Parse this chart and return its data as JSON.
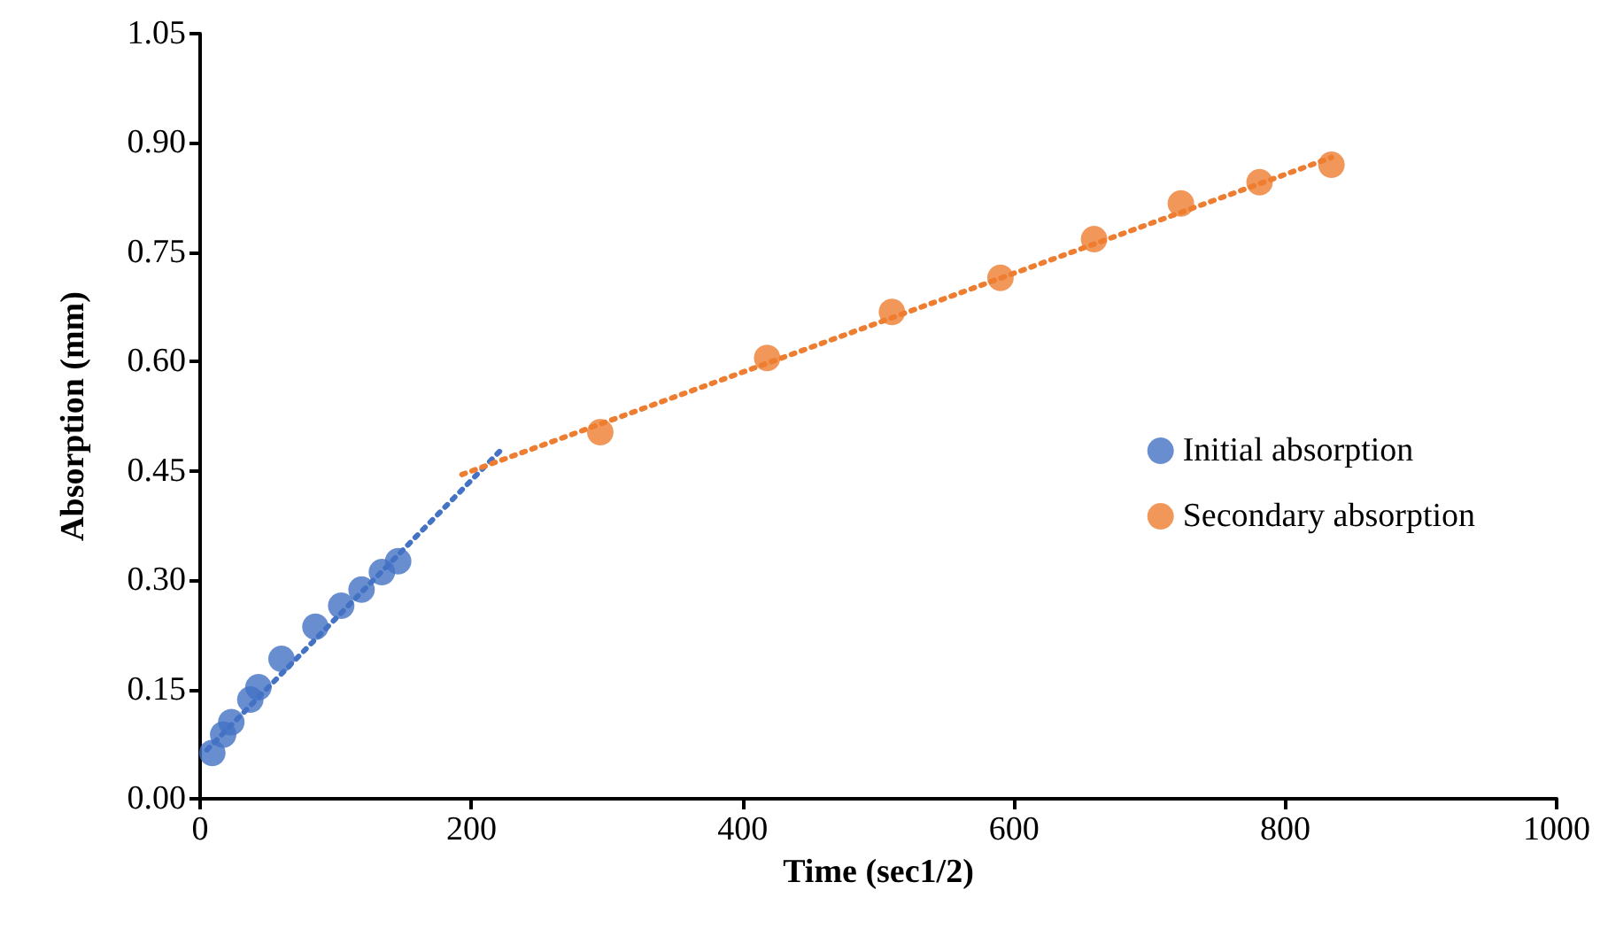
{
  "chart_data": {
    "type": "scatter",
    "xlabel": "Time (sec1/2)",
    "ylabel": "Absorption (mm)",
    "xlim": [
      0,
      1000
    ],
    "xticks": [
      0,
      200,
      400,
      600,
      800,
      1000
    ],
    "ylim": [
      0,
      1.05
    ],
    "yticks": [
      {
        "value": 0,
        "label": "0.00"
      },
      {
        "value": 0.15,
        "label": "0.15"
      },
      {
        "value": 0.3,
        "label": "0.30"
      },
      {
        "value": 0.45,
        "label": "0.45"
      },
      {
        "value": 0.6,
        "label": "0.60"
      },
      {
        "value": 0.75,
        "label": "0.75"
      },
      {
        "value": 0.9,
        "label": "0.90"
      },
      {
        "value": 1.05,
        "label": "1.05"
      }
    ],
    "grid": false,
    "legend": "right",
    "marker": "circle",
    "series": [
      {
        "name": "Initial absorption",
        "color": "#4472c4",
        "x": [
          9,
          17,
          23,
          37,
          43,
          60,
          85,
          104,
          119,
          134,
          146
        ],
        "values": [
          0.063,
          0.088,
          0.105,
          0.136,
          0.153,
          0.192,
          0.236,
          0.265,
          0.287,
          0.311,
          0.326
        ]
      },
      {
        "name": "Secondary absorption",
        "color": "#ed7d31",
        "x": [
          295,
          418,
          510,
          590,
          659,
          723,
          781,
          834
        ],
        "values": [
          0.503,
          0.605,
          0.668,
          0.715,
          0.768,
          0.817,
          0.846,
          0.87
        ]
      },
      {
        "type": "line",
        "color": "#4472c4",
        "line_style": "dotted",
        "marker": "none",
        "x": [
          5,
          222
        ],
        "values": [
          0.067,
          0.479
        ]
      },
      {
        "type": "line",
        "color": "#ed7d31",
        "line_style": "dotted",
        "marker": "none",
        "x": [
          193,
          834
        ],
        "values": [
          0.445,
          0.88
        ]
      }
    ]
  }
}
